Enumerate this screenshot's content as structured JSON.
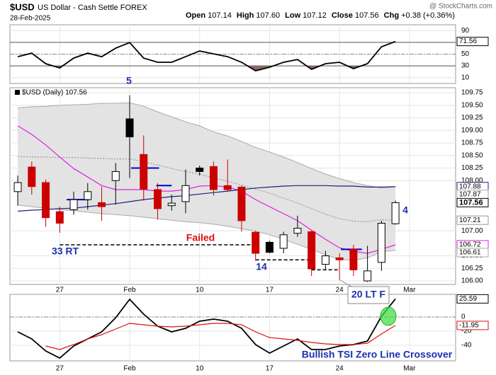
{
  "header": {
    "symbol": "$USD",
    "name": "US Dollar - Cash Settle FOREX",
    "date": "28-Feb-2025",
    "quote": [
      {
        "label": "Open",
        "value": "107.14"
      },
      {
        "label": "High",
        "value": "107.60"
      },
      {
        "label": "Low",
        "value": "107.12"
      },
      {
        "label": "Close",
        "value": "107.56"
      },
      {
        "label": "Chg",
        "value": "+0.38 (+0.36%)"
      }
    ],
    "credit": "@ StockCharts.com"
  },
  "annotations": {
    "wave5": "5",
    "rt": "33 RT",
    "failed": "Failed",
    "wave14": "14",
    "wave4": "4",
    "ltf": "20 LT F",
    "tsi_note": "Bullish TSI Zero Line Crossover"
  },
  "chart_data": [
    {
      "type": "line",
      "ylim": [
        0,
        100
      ],
      "yticks": [
        90,
        50,
        30,
        10
      ],
      "levels": [
        70,
        50,
        30
      ],
      "oversold_color": "#8b6b63",
      "series": [
        {
          "color": "#000000",
          "values": [
            45.7,
            51.7,
            33.7,
            26.5,
            43.3,
            51.7,
            45.7,
            60.1,
            69.6,
            43.3,
            36.1,
            36.1,
            45.7,
            55.3,
            50.5,
            45.7,
            36.1,
            21.7,
            27.7,
            36.1,
            40.9,
            24.1,
            33.7,
            36.1,
            25.3,
            33.7,
            62.5,
            71.56
          ]
        }
      ]
    },
    {
      "type": "candlestick",
      "legend": "$USD (Daily) 107.56",
      "ylim": [
        105.93,
        109.85
      ],
      "xlim": [
        -0.56,
        31.3
      ],
      "yticks": [
        109.75,
        {
          "value": 109.5,
          "label": "109.50"
        },
        109.25,
        {
          "value": 109,
          "label": "109.00"
        },
        108.75,
        {
          "value": 108.5,
          "label": "108.50"
        },
        108.25,
        {
          "value": 108,
          "label": "108.00"
        },
        {
          "value": 107,
          "label": "107.00"
        },
        {
          "value": 106.5,
          "label": "106.50"
        },
        106.25,
        {
          "value": 106,
          "label": "106.00"
        }
      ],
      "xticks": [
        {
          "value": 3,
          "label": "27"
        },
        {
          "value": 8,
          "label": "Feb"
        },
        {
          "value": 13,
          "label": "10"
        },
        {
          "value": 18,
          "label": "17"
        },
        {
          "value": 23,
          "label": "24"
        },
        {
          "value": 28,
          "label": "Mar"
        }
      ],
      "candles": [
        {
          "o": 107.78,
          "h": 108.1,
          "l": 107.5,
          "c": 107.96
        },
        {
          "o": 108.27,
          "h": 108.38,
          "l": 107.72,
          "c": 107.88
        },
        {
          "o": 107.96,
          "h": 108.02,
          "l": 107.08,
          "c": 107.26
        },
        {
          "o": 107.38,
          "h": 107.48,
          "l": 106.96,
          "c": 107.15
        },
        {
          "o": 107.42,
          "h": 107.78,
          "l": 107.32,
          "c": 107.62
        },
        {
          "o": 107.62,
          "h": 107.95,
          "l": 107.42,
          "c": 107.78
        },
        {
          "o": 107.56,
          "h": 107.88,
          "l": 107.2,
          "c": 107.48
        },
        {
          "o": 108.0,
          "h": 108.35,
          "l": 107.52,
          "c": 108.18
        },
        {
          "o": 109.23,
          "h": 109.7,
          "l": 108.05,
          "c": 108.87
        },
        {
          "o": 108.52,
          "h": 108.9,
          "l": 107.6,
          "c": 107.83
        },
        {
          "o": 107.82,
          "h": 107.95,
          "l": 107.22,
          "c": 107.44
        },
        {
          "o": 107.5,
          "h": 107.72,
          "l": 107.4,
          "c": 107.55
        },
        {
          "o": 107.58,
          "h": 108.22,
          "l": 107.35,
          "c": 107.9
        },
        {
          "o": 108.25,
          "h": 108.3,
          "l": 108.1,
          "c": 108.18
        },
        {
          "o": 108.28,
          "h": 108.38,
          "l": 107.7,
          "c": 107.82
        },
        {
          "o": 107.9,
          "h": 108.42,
          "l": 107.78,
          "c": 107.82
        },
        {
          "o": 107.87,
          "h": 107.9,
          "l": 106.98,
          "c": 107.2
        },
        {
          "o": 106.97,
          "h": 107.0,
          "l": 106.4,
          "c": 106.55
        },
        {
          "o": 106.77,
          "h": 106.8,
          "l": 106.55,
          "c": 106.57
        },
        {
          "o": 106.65,
          "h": 106.98,
          "l": 106.55,
          "c": 106.92
        },
        {
          "o": 106.95,
          "h": 107.3,
          "l": 106.88,
          "c": 107.05
        },
        {
          "o": 106.98,
          "h": 107.0,
          "l": 106.1,
          "c": 106.24
        },
        {
          "o": 106.33,
          "h": 106.6,
          "l": 106.22,
          "c": 106.5
        },
        {
          "o": 106.46,
          "h": 106.55,
          "l": 106.02,
          "c": 106.42
        },
        {
          "o": 106.63,
          "h": 106.72,
          "l": 106.1,
          "c": 106.22
        },
        {
          "o": 106.0,
          "h": 106.7,
          "l": 105.98,
          "c": 106.2
        },
        {
          "o": 106.37,
          "h": 107.2,
          "l": 106.2,
          "c": 107.15
        },
        {
          "o": 107.14,
          "h": 107.6,
          "l": 107.12,
          "c": 107.56
        }
      ],
      "colors": [
        "#000000",
        "#cc0000",
        "#cc0000",
        "#cc0000",
        "#000000",
        "#000000",
        "#cc0000",
        "#000000",
        "#000000",
        "#cc0000",
        "#cc0000",
        "#000000",
        "#000000",
        "#000000",
        "#cc0000",
        "#cc0000",
        "#cc0000",
        "#cc0000",
        "#000000",
        "#000000",
        "#000000",
        "#cc0000",
        "#000000",
        "#cc0000",
        "#cc0000",
        "#000000",
        "#000000",
        "#000000"
      ],
      "band_fill": "#e3e3e3",
      "series": [
        {
          "color": "#aaaaaa",
          "role": "upper",
          "values": [
            109.45,
            109.47,
            109.48,
            109.5,
            109.51,
            109.52,
            109.54,
            109.54,
            109.55,
            109.48,
            109.37,
            109.27,
            109.17,
            109.09,
            108.97,
            108.89,
            108.78,
            108.66,
            108.57,
            108.47,
            108.36,
            108.24,
            108.13,
            108.04,
            107.96,
            107.9,
            107.85,
            107.87
          ]
        },
        {
          "color": "#aaaaaa",
          "role": "lower",
          "values": [
            107.51,
            107.48,
            107.45,
            107.42,
            107.4,
            107.37,
            107.34,
            107.32,
            107.3,
            107.27,
            107.24,
            107.21,
            107.18,
            107.16,
            107.13,
            107.09,
            107.04,
            106.99,
            106.92,
            106.83,
            106.73,
            106.63,
            106.52,
            106.43,
            106.41,
            106.46,
            106.58,
            106.61
          ]
        },
        {
          "color": "#999999",
          "dash": true,
          "values": [
            108.48,
            108.47,
            108.47,
            108.46,
            108.46,
            108.45,
            108.44,
            108.43,
            108.43,
            108.38,
            108.31,
            108.24,
            108.18,
            108.13,
            108.05,
            107.99,
            107.91,
            107.83,
            107.75,
            107.65,
            107.55,
            107.44,
            107.33,
            107.24,
            107.19,
            107.18,
            107.22,
            107.21
          ]
        },
        {
          "color": "#e020e0",
          "values": [
            109.09,
            108.92,
            108.71,
            108.47,
            108.24,
            108.07,
            107.9,
            107.82,
            107.82,
            107.82,
            107.79,
            107.79,
            107.82,
            107.89,
            107.9,
            107.87,
            107.79,
            107.62,
            107.48,
            107.34,
            107.2,
            107.01,
            106.83,
            106.66,
            106.59,
            106.55,
            106.63,
            106.72
          ]
        },
        {
          "color": "#1a237e",
          "values": [
            107.39,
            107.41,
            107.42,
            107.44,
            107.45,
            107.48,
            107.51,
            107.54,
            107.58,
            107.62,
            107.65,
            107.68,
            107.7,
            107.73,
            107.76,
            107.79,
            107.82,
            107.85,
            107.87,
            107.89,
            107.9,
            107.9,
            107.9,
            107.89,
            107.89,
            107.87,
            107.87,
            107.88
          ]
        }
      ],
      "levels": [
        {
          "value": 107.62,
          "from": 3.5,
          "to": 5.1,
          "color": "#0000cc"
        },
        {
          "value": 108.25,
          "from": 8.1,
          "to": 10.1,
          "color": "#0000cc"
        },
        {
          "value": 107.9,
          "from": 9.9,
          "to": 11,
          "color": "#0000cc"
        },
        {
          "value": 106.63,
          "from": 23.1,
          "to": 24.6,
          "color": "#0000cc"
        },
        {
          "value": 106.72,
          "from": 3,
          "to": 16.7,
          "color": "#000000",
          "dash": true
        },
        {
          "value": 106.42,
          "from": 17,
          "to": 21,
          "color": "#000000",
          "dash": true
        },
        {
          "value": 106.22,
          "from": 21,
          "to": 23,
          "color": "#000000",
          "dash": true
        }
      ]
    },
    {
      "type": "line",
      "ylim": [
        -62,
        32
      ],
      "yticks": [
        0,
        -20,
        -40
      ],
      "zero_line": 0,
      "series": [
        {
          "color": "#000000",
          "values": [
            -21,
            -31,
            -48,
            -58,
            -41,
            -31,
            -21,
            -1,
            25,
            4,
            -13,
            -21,
            -16,
            -6,
            -3,
            -6,
            -16,
            -39,
            -51,
            -41,
            -31,
            -46,
            -46,
            -41,
            -39,
            -34,
            1,
            25.59
          ]
        },
        {
          "color": "#dd1111",
          "values": [
            null,
            null,
            -41,
            -46,
            -39,
            -31,
            -25,
            -17,
            -9,
            -11,
            -13,
            -14,
            -13,
            -11,
            -9,
            -9,
            -11,
            -21,
            -29,
            -31,
            -33,
            -36,
            -38,
            -39,
            -39,
            -37,
            -24,
            -11.95
          ]
        }
      ]
    }
  ]
}
